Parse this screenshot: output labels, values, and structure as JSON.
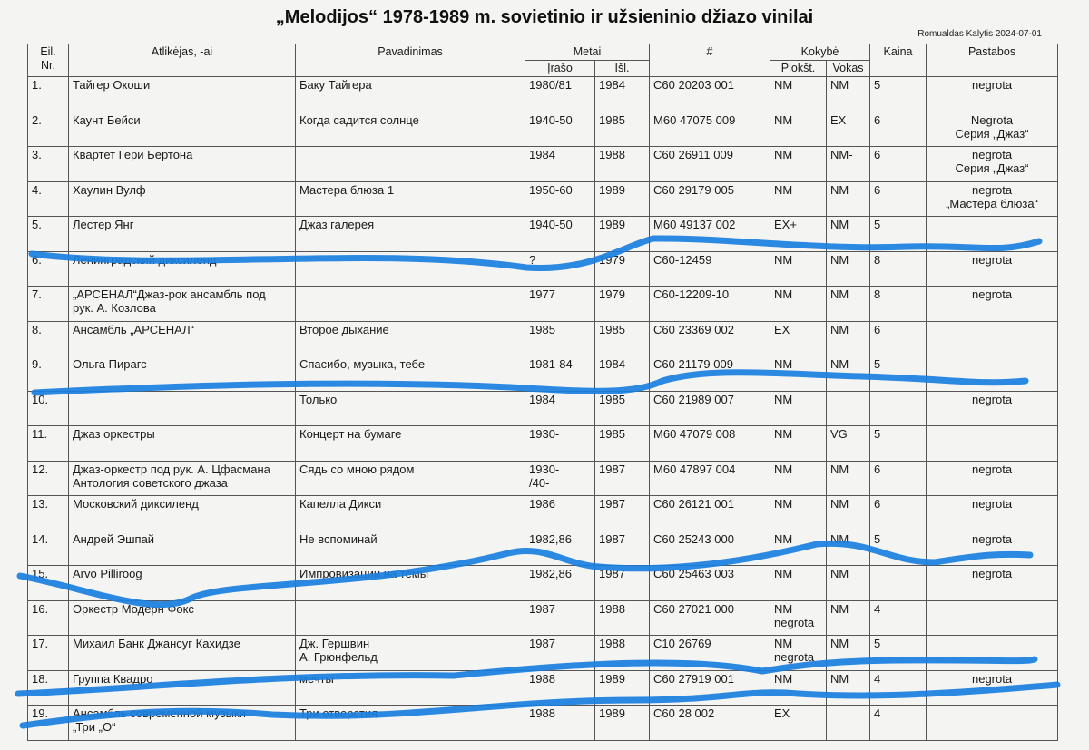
{
  "header": {
    "title": "„Melodijos“ 1978-1989 m. sovietinio ir užsieninio džiazo vinilai",
    "author_date": "Romualdas Kalytis 2024-07-01"
  },
  "table": {
    "columns": [
      "Eil. Nr.",
      "Atlikėjas, -ai",
      "Pavadinimas",
      "Metai",
      "#",
      "Kokybė",
      "Kaina",
      "Pastabos"
    ],
    "subcolumns": [
      "Įrašo",
      "Išl.",
      "Plokšt.",
      "Vokas"
    ],
    "rows": [
      [
        "1.",
        "Тайгер Окоши",
        "Баку Тайгера",
        "1980/81",
        "1984",
        "C60 20203 001",
        "NM",
        "NM",
        "5",
        "negrota"
      ],
      [
        "2.",
        "Каунт Бейси",
        "Когда садится солнце",
        "1940-50",
        "1985",
        "M60 47075 009",
        "NM",
        "EX",
        "6",
        "Negrota\nСерия „Джаз“"
      ],
      [
        "3.",
        "Квартет Гери Бертона",
        null,
        "1984",
        "1988",
        "C60 26911 009",
        "NM",
        "NM-",
        "6",
        "negrota\nСерия „Джаз“"
      ],
      [
        "4.",
        "Хаулин Вулф",
        "Мастера блюза 1",
        "1950-60",
        "1989",
        "C60 29179 005",
        "NM",
        "NM",
        "6",
        "negrota\n„Мастера блюза“"
      ],
      [
        "5.",
        "Лестер Янг",
        "Джаз галерея",
        "1940-50",
        "1989",
        "M60 49137 002",
        "EX+",
        "NM",
        "5",
        null
      ],
      [
        "6.",
        "Ленинградский диксиленд",
        null,
        "?",
        "1979",
        "C60-12459",
        "NM",
        "NM",
        "8",
        "negrota"
      ],
      [
        "7.",
        "„АРСЕНАЛ“Джаз-рок ансамбль под\nрук. А. Козлова",
        null,
        "1977",
        "1979",
        "C60-12209-10",
        "NM",
        "NM",
        "8",
        "negrota"
      ],
      [
        "8.",
        "Ансамбль „АРСЕНАЛ“",
        "Второе дыхание",
        "1985",
        "1985",
        "C60 23369 002",
        "EX",
        "NM",
        "6",
        null
      ],
      [
        "9.",
        "Ольга Пирагс",
        "Спасибо, музыка, тебе",
        "1981-84",
        "1984",
        "C60 21179 009",
        "NM",
        "NM",
        "5",
        null
      ],
      [
        "10.",
        null,
        "Только",
        "1984",
        "1985",
        "C60 21989 007",
        "NM",
        null,
        null,
        "negrota"
      ],
      [
        "11.",
        "Джаз оркестры",
        "Концерт на бумаге",
        "1930-",
        "1985",
        "M60 47079 008",
        "NM",
        "VG",
        "5",
        null
      ],
      [
        "12.",
        "Джаз-оркестр под рук. А. Цфасмана\nАнтология советского джаза",
        "Сядь со мною рядом",
        "1930-\n/40-",
        "1987",
        "M60 47897 004",
        "NM",
        "NM",
        "6",
        "negrota"
      ],
      [
        "13.",
        "Московский диксиленд",
        "Капелла Дикси",
        "1986",
        "1987",
        "C60 26121 001",
        "NM",
        "NM",
        "6",
        "negrota"
      ],
      [
        "14.",
        "Андрей Эшпай",
        "Не вспоминай",
        "1982,86",
        "1987",
        "C60 25243 000",
        "NM",
        "NM",
        "5",
        "negrota"
      ],
      [
        "15.",
        "Arvo Pilliroog",
        "Импровизации на темы",
        "1982,86",
        "1987",
        "C60 25463 003",
        "NM",
        "NM",
        null,
        "negrota"
      ],
      [
        "16.",
        "Оркестр Модерн Фокс",
        null,
        "1987",
        "1988",
        "C60 27021 000",
        "NM\nnegrota",
        "NM",
        "4",
        null
      ],
      [
        "17.",
        "Михаил Банк Джансуг Кахидзе",
        "Дж. Гершвин\nА. Грюнфельд",
        "1987",
        "1988",
        "C10 26769",
        "NM\nnegrota",
        "NM",
        "5",
        null
      ],
      [
        "18.",
        "Группа Квадро",
        "мечты",
        "1988",
        "1989",
        "C60 27919 001",
        "NM",
        "NM",
        "4",
        "negrota"
      ],
      [
        "19.",
        "Ансамбль современной музыки\n„Три „О“",
        "Три отверстия",
        "1988",
        "1989",
        "C60 28 002",
        "EX",
        null,
        "4",
        null
      ]
    ]
  }
}
